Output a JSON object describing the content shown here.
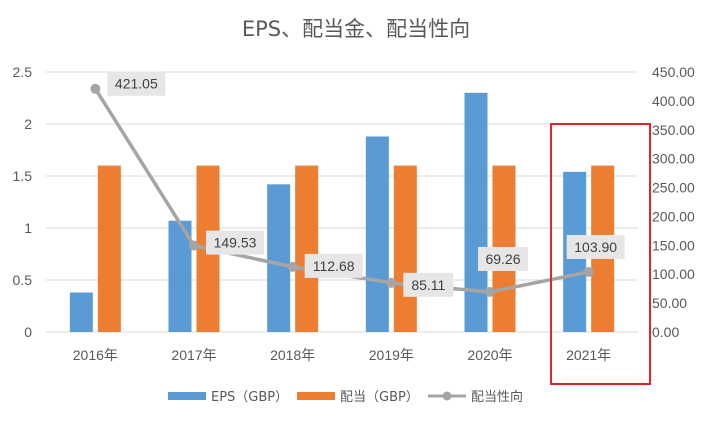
{
  "chart_data": {
    "type": "bar",
    "title": "EPS、配当金、配当性向",
    "categories": [
      "2016年",
      "2017年",
      "2018年",
      "2019年",
      "2020年",
      "2021年"
    ],
    "series": [
      {
        "name": "EPS（GBP）",
        "type": "bar",
        "axis": "left",
        "color": "#5B9BD5",
        "values": [
          0.38,
          1.07,
          1.42,
          1.88,
          2.3,
          1.54
        ]
      },
      {
        "name": "配当（GBP）",
        "type": "bar",
        "axis": "left",
        "color": "#ED7D31",
        "values": [
          1.6,
          1.6,
          1.6,
          1.6,
          1.6,
          1.6
        ]
      },
      {
        "name": "配当性向",
        "type": "line",
        "axis": "right",
        "color": "#A5A5A5",
        "values": [
          421.05,
          149.53,
          112.68,
          85.11,
          69.26,
          103.9
        ],
        "labels": [
          "421.05",
          "149.53",
          "112.68",
          "85.11",
          "69.26",
          "103.90"
        ]
      }
    ],
    "y_left": {
      "ylim": [
        0,
        2.5
      ],
      "ticks": [
        "0",
        "0.5",
        "1",
        "1.5",
        "2",
        "2.5"
      ]
    },
    "y_right": {
      "ylim": [
        0,
        450
      ],
      "ticks": [
        "0.00",
        "50.00",
        "100.00",
        "150.00",
        "200.00",
        "250.00",
        "300.00",
        "350.00",
        "400.00",
        "450.00"
      ]
    },
    "grid": true,
    "legend": "bottom",
    "highlight": {
      "category": "2021年",
      "color": "#E0262A"
    }
  }
}
